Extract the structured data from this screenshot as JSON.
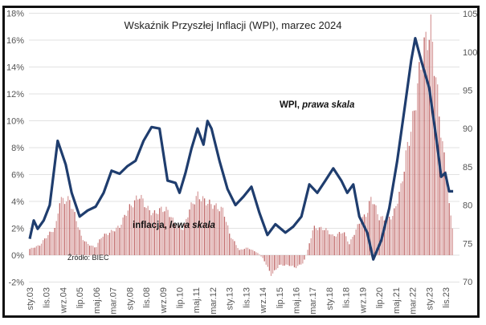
{
  "chart_data": {
    "type": "bar+line",
    "title": "Wskaźnik Przyszłej Inflacji (WPI), marzec 2024",
    "source": "Źródło: BIEC",
    "left_axis": {
      "ticks": [
        "-2%",
        "0%",
        "2%",
        "4%",
        "6%",
        "8%",
        "10%",
        "12%",
        "14%",
        "16%",
        "18%"
      ],
      "range": [
        -2,
        18
      ]
    },
    "right_axis": {
      "ticks": [
        "70",
        "75",
        "80",
        "85",
        "90",
        "95",
        "100",
        "105"
      ],
      "range": [
        70,
        105
      ]
    },
    "x_ticks": [
      "sty.03",
      "lis.03",
      "wrz.04",
      "lip.05",
      "maj.06",
      "mar.07",
      "sty.08",
      "lis.08",
      "wrz.09",
      "lip.10",
      "maj.11",
      "mar.12",
      "sty.13",
      "lis.13",
      "wrz.14",
      "lip.15",
      "maj.16",
      "mar.17",
      "sty.18",
      "lis.18",
      "wrz.19",
      "lip.20",
      "maj.21",
      "mar.22",
      "sty.23",
      "lis.23"
    ],
    "x_range_years": [
      2003.0,
      2024.2
    ],
    "grid": true,
    "series": [
      {
        "name": "inflacja",
        "label_main": "inflacja,",
        "label_italic": "lewa skala",
        "type": "bar",
        "axis": "left",
        "color": "#d9a0a0",
        "color_alt": "#c06868",
        "points": [
          [
            2003.0,
            0.5
          ],
          [
            2003.5,
            0.8
          ],
          [
            2003.9,
            1.6
          ],
          [
            2004.3,
            2.2
          ],
          [
            2004.5,
            4.4
          ],
          [
            2005.0,
            4.4
          ],
          [
            2005.3,
            3.0
          ],
          [
            2005.6,
            1.4
          ],
          [
            2005.9,
            0.9
          ],
          [
            2006.3,
            0.6
          ],
          [
            2006.6,
            1.5
          ],
          [
            2007.0,
            1.8
          ],
          [
            2007.5,
            2.3
          ],
          [
            2007.9,
            3.6
          ],
          [
            2008.5,
            4.8
          ],
          [
            2008.9,
            3.7
          ],
          [
            2009.2,
            3.3
          ],
          [
            2009.6,
            3.7
          ],
          [
            2009.9,
            3.6
          ],
          [
            2010.3,
            2.4
          ],
          [
            2010.7,
            2.1
          ],
          [
            2011.0,
            3.7
          ],
          [
            2011.4,
            4.8
          ],
          [
            2011.8,
            4.3
          ],
          [
            2012.3,
            3.9
          ],
          [
            2012.7,
            3.6
          ],
          [
            2013.0,
            1.7
          ],
          [
            2013.5,
            0.4
          ],
          [
            2013.9,
            0.6
          ],
          [
            2014.4,
            0.2
          ],
          [
            2014.7,
            -0.3
          ],
          [
            2015.1,
            -1.6
          ],
          [
            2015.5,
            -0.8
          ],
          [
            2016.0,
            -0.8
          ],
          [
            2016.3,
            -1.0
          ],
          [
            2016.7,
            -0.6
          ],
          [
            2016.9,
            0.3
          ],
          [
            2017.2,
            2.2
          ],
          [
            2017.8,
            2.1
          ],
          [
            2018.2,
            1.5
          ],
          [
            2018.7,
            1.9
          ],
          [
            2019.0,
            0.9
          ],
          [
            2019.5,
            2.6
          ],
          [
            2019.9,
            3.4
          ],
          [
            2020.1,
            4.7
          ],
          [
            2020.5,
            3.0
          ],
          [
            2020.9,
            2.9
          ],
          [
            2021.2,
            3.2
          ],
          [
            2021.6,
            5.5
          ],
          [
            2021.9,
            8.6
          ],
          [
            2022.2,
            11.0
          ],
          [
            2022.6,
            15.6
          ],
          [
            2022.9,
            17.5
          ],
          [
            2023.1,
            18.0
          ],
          [
            2023.4,
            13.0
          ],
          [
            2023.7,
            8.2
          ],
          [
            2023.9,
            6.6
          ],
          [
            2024.0,
            3.9
          ],
          [
            2024.2,
            2.0
          ]
        ]
      },
      {
        "name": "WPI",
        "label_main": "WPI,",
        "label_italic": "prawa skala",
        "type": "line",
        "axis": "right",
        "color": "#1f3d6e",
        "points": [
          [
            2003.0,
            75.6
          ],
          [
            2003.2,
            78.0
          ],
          [
            2003.4,
            76.9
          ],
          [
            2003.7,
            78.0
          ],
          [
            2004.0,
            80.0
          ],
          [
            2004.4,
            88.4
          ],
          [
            2004.8,
            85.3
          ],
          [
            2005.1,
            81.6
          ],
          [
            2005.5,
            78.5
          ],
          [
            2005.9,
            79.3
          ],
          [
            2006.3,
            79.8
          ],
          [
            2006.7,
            81.6
          ],
          [
            2007.1,
            84.5
          ],
          [
            2007.5,
            84.1
          ],
          [
            2007.9,
            85.1
          ],
          [
            2008.3,
            85.8
          ],
          [
            2008.7,
            88.4
          ],
          [
            2009.1,
            90.2
          ],
          [
            2009.5,
            90.0
          ],
          [
            2009.9,
            83.2
          ],
          [
            2010.3,
            82.9
          ],
          [
            2010.5,
            81.6
          ],
          [
            2010.8,
            84.2
          ],
          [
            2011.1,
            87.4
          ],
          [
            2011.4,
            90.0
          ],
          [
            2011.7,
            87.9
          ],
          [
            2011.9,
            91.0
          ],
          [
            2012.1,
            90.0
          ],
          [
            2012.5,
            85.8
          ],
          [
            2012.9,
            82.1
          ],
          [
            2013.3,
            80.0
          ],
          [
            2013.7,
            81.1
          ],
          [
            2014.1,
            82.4
          ],
          [
            2014.5,
            79.0
          ],
          [
            2014.9,
            76.1
          ],
          [
            2015.3,
            77.5
          ],
          [
            2015.8,
            76.4
          ],
          [
            2016.2,
            77.2
          ],
          [
            2016.6,
            78.5
          ],
          [
            2017.0,
            82.7
          ],
          [
            2017.4,
            81.6
          ],
          [
            2017.8,
            83.2
          ],
          [
            2018.2,
            84.8
          ],
          [
            2018.6,
            83.2
          ],
          [
            2018.9,
            81.6
          ],
          [
            2019.2,
            82.7
          ],
          [
            2019.5,
            78.5
          ],
          [
            2019.9,
            76.4
          ],
          [
            2020.2,
            72.9
          ],
          [
            2020.6,
            75.4
          ],
          [
            2021.0,
            79.6
          ],
          [
            2021.4,
            85.8
          ],
          [
            2021.8,
            93.2
          ],
          [
            2022.1,
            98.9
          ],
          [
            2022.3,
            101.8
          ],
          [
            2022.6,
            98.9
          ],
          [
            2023.0,
            95.3
          ],
          [
            2023.4,
            87.9
          ],
          [
            2023.6,
            83.7
          ],
          [
            2023.8,
            84.2
          ],
          [
            2024.0,
            81.8
          ],
          [
            2024.2,
            81.8
          ]
        ]
      }
    ]
  }
}
